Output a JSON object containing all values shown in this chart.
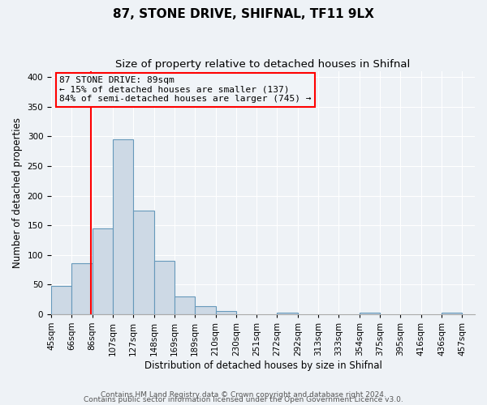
{
  "title": "87, STONE DRIVE, SHIFNAL, TF11 9LX",
  "subtitle": "Size of property relative to detached houses in Shifnal",
  "xlabel": "Distribution of detached houses by size in Shifnal",
  "ylabel": "Number of detached properties",
  "bar_values": [
    47,
    86,
    145,
    295,
    175,
    90,
    30,
    13,
    5,
    0,
    0,
    3,
    0,
    0,
    0,
    2,
    0,
    0,
    0,
    3
  ],
  "bar_labels": [
    "45sqm",
    "66sqm",
    "86sqm",
    "107sqm",
    "127sqm",
    "148sqm",
    "169sqm",
    "189sqm",
    "210sqm",
    "230sqm",
    "251sqm",
    "272sqm",
    "292sqm",
    "313sqm",
    "333sqm",
    "354sqm",
    "375sqm",
    "395sqm",
    "416sqm",
    "436sqm",
    "457sqm"
  ],
  "bar_color": "#cdd9e5",
  "bar_edge_color": "#6699bb",
  "ylim": [
    0,
    410
  ],
  "xlim_left": 45,
  "xlim_right": 478,
  "bin_width": 21,
  "vline_x": 86,
  "vline_color": "red",
  "annotation_title": "87 STONE DRIVE: 89sqm",
  "annotation_line1": "← 15% of detached houses are smaller (137)",
  "annotation_line2": "84% of semi-detached houses are larger (745) →",
  "annotation_box_color": "red",
  "annotation_bg": "#f0f4f8",
  "footnote1": "Contains HM Land Registry data © Crown copyright and database right 2024.",
  "footnote2": "Contains public sector information licensed under the Open Government Licence v3.0.",
  "background_color": "#eef2f6",
  "grid_color": "#ffffff",
  "title_fontsize": 11,
  "subtitle_fontsize": 9.5,
  "label_fontsize": 8.5,
  "tick_fontsize": 7.5,
  "footnote_fontsize": 6.5,
  "annotation_fontsize": 8,
  "yticks": [
    0,
    50,
    100,
    150,
    200,
    250,
    300,
    350,
    400
  ]
}
